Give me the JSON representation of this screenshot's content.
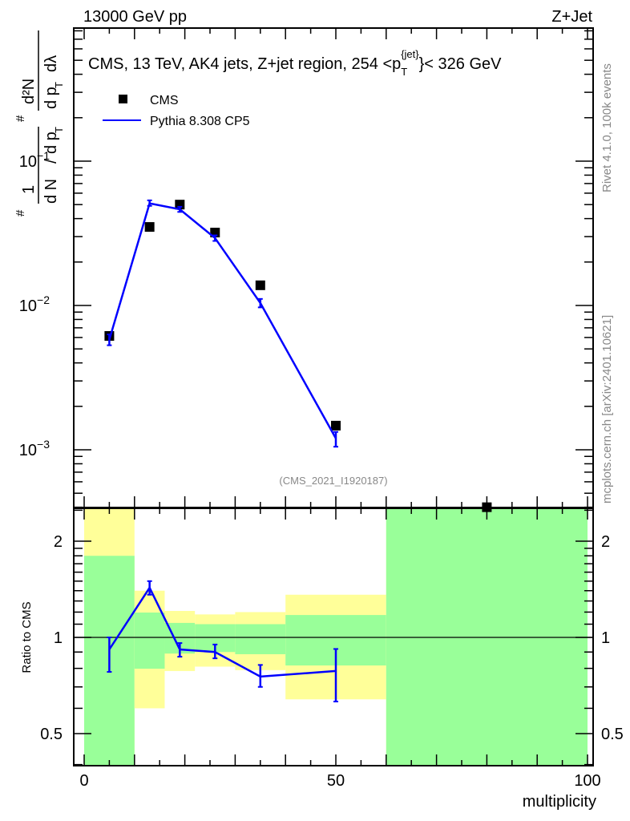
{
  "header": {
    "left": "13000 GeV pp",
    "right": "Z+Jet"
  },
  "side_text": {
    "rivet": "Rivet 4.1.0,  100k events",
    "mcplots": "mcplots.cern.ch [arXiv:2401.10621]"
  },
  "colors": {
    "cms": "#000000",
    "pythia": "#0000ff",
    "green_band": "#99ff99",
    "yellow_band": "#ffff99"
  },
  "chart_data": [
    {
      "type": "scatter",
      "title": "CMS, 13 TeV, AK4 jets, Z+jet region, 254 <p",
      "title_sub": "T",
      "title_sup": "{jet}",
      "title_end": "}< 326 GeV",
      "ylabel_parts": {
        "hash": "#",
        "one": "1",
        "dN": "d N",
        "slash": "/",
        "dp": "d p",
        "T": "T",
        "d2N": "d²N",
        "dpdl": "d p",
        "dl": "dλ"
      },
      "yscale": "log",
      "ylim": [
        0.0004,
        0.84
      ],
      "xlim": [
        -2,
        100
      ],
      "yticks": [
        {
          "v": 0.1,
          "base": "10",
          "exp": "−1"
        },
        {
          "v": 0.01,
          "base": "10",
          "exp": "−2"
        },
        {
          "v": 0.001,
          "base": "10",
          "exp": "−3"
        }
      ],
      "legend": {
        "placement": "top-left",
        "entries": [
          "CMS",
          "Pythia 8.308 CP5"
        ]
      },
      "annotation": "(CMS_2021_I1920187)",
      "series": [
        {
          "name": "CMS",
          "x": [
            5,
            13,
            19,
            26,
            35,
            50,
            80
          ],
          "y": [
            0.00615,
            0.035,
            0.05,
            0.032,
            0.0138,
            0.00147,
            0.0004
          ]
        },
        {
          "name": "Pythia 8.308 CP5",
          "x": [
            5,
            13,
            19,
            26,
            35,
            50
          ],
          "y": [
            0.0058,
            0.051,
            0.0464,
            0.0293,
            0.0104,
            0.0012
          ],
          "err_lo": [
            0.0053,
            0.049,
            0.0445,
            0.028,
            0.0097,
            0.00105
          ],
          "err_hi": [
            0.0063,
            0.0535,
            0.0483,
            0.0306,
            0.0111,
            0.00133
          ]
        }
      ]
    },
    {
      "type": "line",
      "ylabel": "Ratio to CMS",
      "xlabel": "multiplicity",
      "yscale": "log",
      "ylim": [
        0.4,
        2.5
      ],
      "xlim": [
        -2,
        100
      ],
      "yticks": [
        {
          "v": 2,
          "label": "2"
        },
        {
          "v": 1,
          "label": "1"
        },
        {
          "v": 0.5,
          "label": "0.5"
        }
      ],
      "xticks": [
        {
          "v": 0,
          "label": "0"
        },
        {
          "v": 50,
          "label": "50"
        },
        {
          "v": 100,
          "label": "100"
        }
      ],
      "bins": [
        [
          0,
          10
        ],
        [
          10,
          16
        ],
        [
          16,
          22
        ],
        [
          22,
          30
        ],
        [
          30,
          40
        ],
        [
          40,
          60
        ],
        [
          60,
          100
        ]
      ],
      "green_band": [
        [
          0.38,
          1.8
        ],
        [
          0.798,
          1.196
        ],
        [
          0.89,
          1.11
        ],
        [
          0.9,
          1.1
        ],
        [
          0.886,
          1.1
        ],
        [
          0.817,
          1.175
        ],
        [
          0.38,
          2.6
        ]
      ],
      "yellow_band": [
        [
          0.38,
          2.6
        ],
        [
          0.6,
          1.4
        ],
        [
          0.785,
          1.21
        ],
        [
          0.81,
          1.18
        ],
        [
          0.79,
          1.2
        ],
        [
          0.64,
          1.36
        ],
        [
          0.38,
          2.6
        ]
      ],
      "series": [
        {
          "name": "Pythia 8.308 CP5",
          "x": [
            5,
            13,
            19,
            26,
            35,
            50
          ],
          "y": [
            0.917,
            1.43,
            0.917,
            0.9,
            0.754,
            0.785
          ],
          "err_lo": [
            0.78,
            1.36,
            0.87,
            0.86,
            0.7,
            0.63
          ],
          "err_hi": [
            1.0,
            1.5,
            0.96,
            0.95,
            0.82,
            0.92
          ]
        }
      ]
    }
  ]
}
